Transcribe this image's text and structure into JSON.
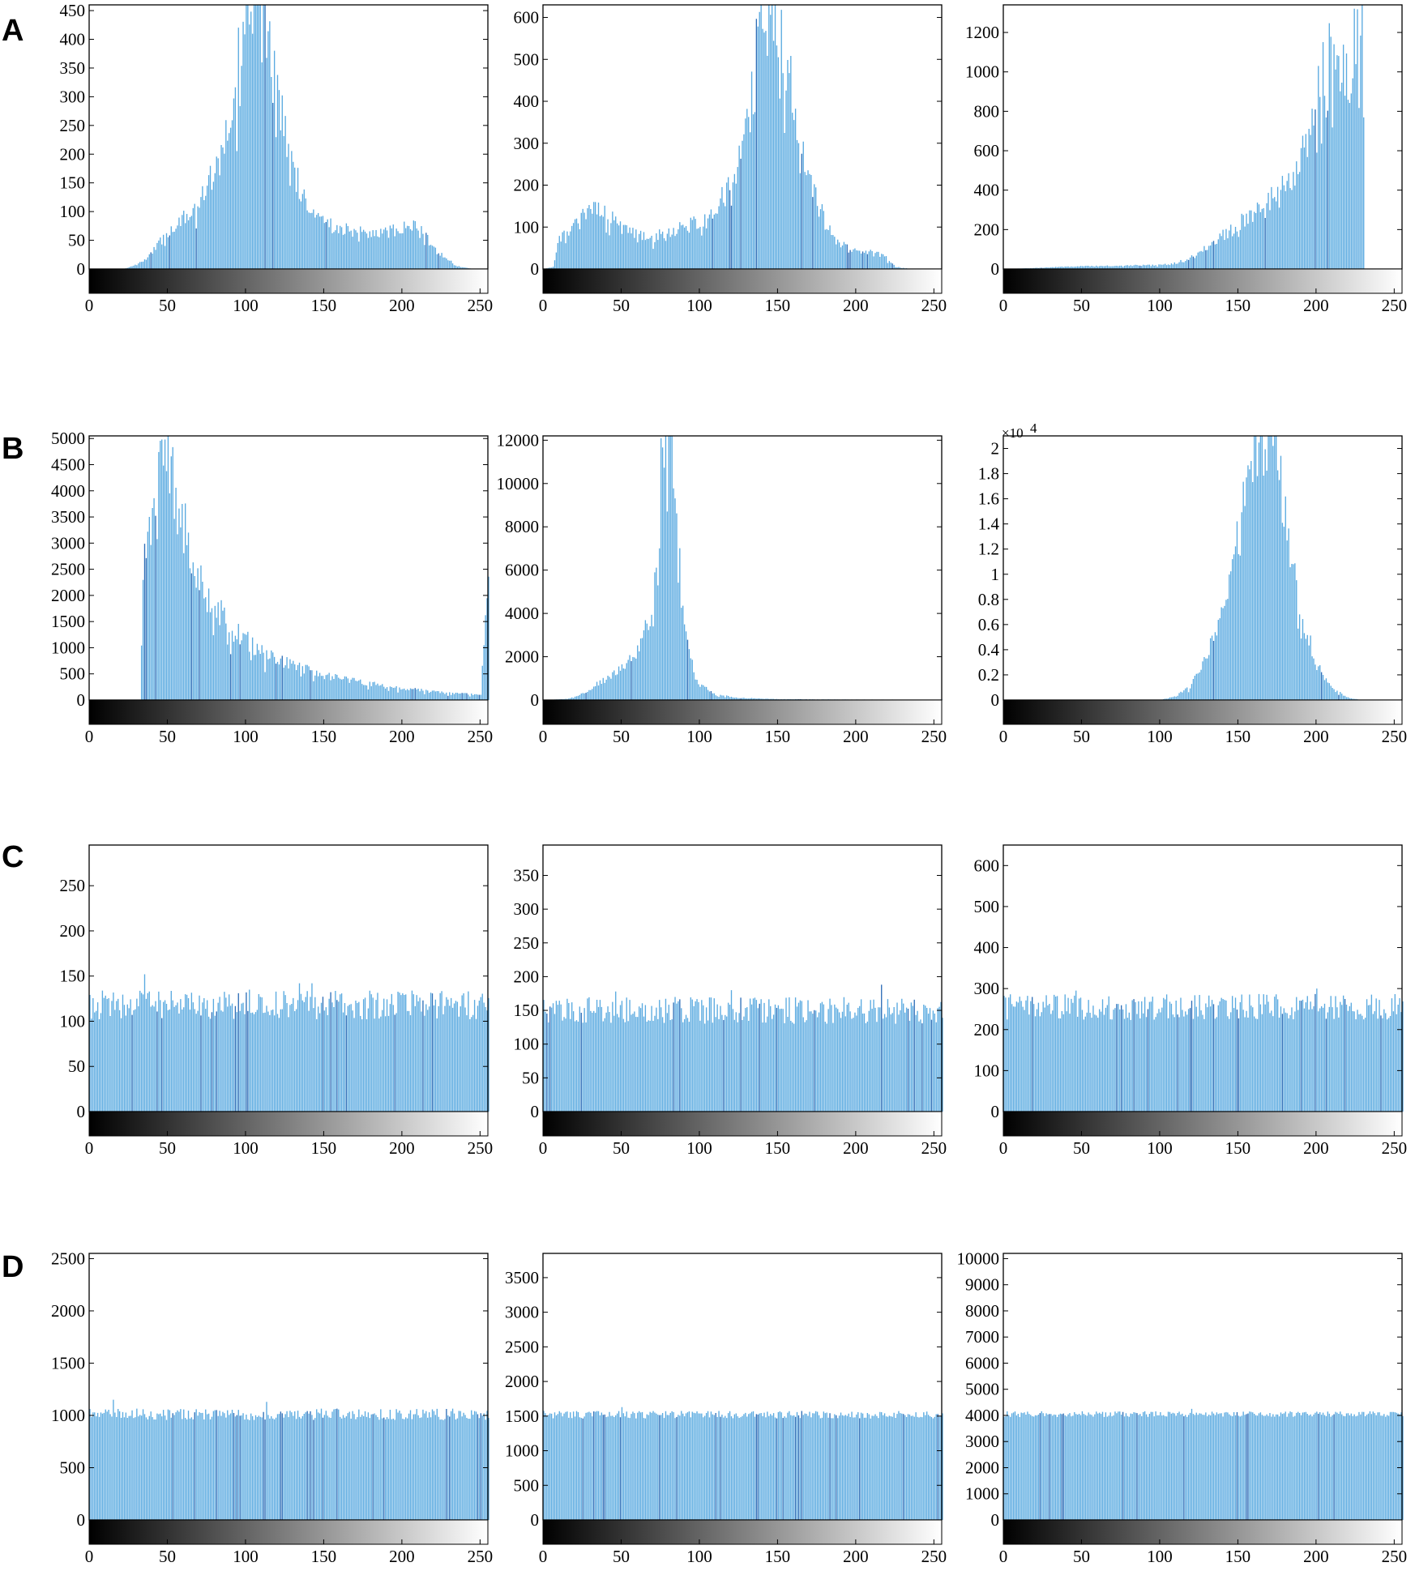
{
  "figure": {
    "bar_color": "#5aaae0",
    "bar_accent_color": "#2f6fb8",
    "row_labels": [
      "A",
      "B",
      "C",
      "D"
    ]
  },
  "chart_data": [
    {
      "id": "A1",
      "row": "A",
      "col": 0,
      "type": "bar",
      "x_range": [
        0,
        255
      ],
      "ylim": [
        0,
        460
      ],
      "yticks": [
        0,
        50,
        100,
        150,
        200,
        250,
        300,
        350,
        400,
        450
      ],
      "xticks": [
        0,
        50,
        100,
        150,
        200,
        250
      ],
      "profile": [
        [
          0,
          0
        ],
        [
          22,
          0
        ],
        [
          30,
          8
        ],
        [
          40,
          30
        ],
        [
          50,
          65
        ],
        [
          60,
          90
        ],
        [
          70,
          120
        ],
        [
          80,
          170
        ],
        [
          90,
          260
        ],
        [
          96,
          380
        ],
        [
          100,
          470
        ],
        [
          108,
          470
        ],
        [
          112,
          420
        ],
        [
          118,
          330
        ],
        [
          125,
          230
        ],
        [
          132,
          160
        ],
        [
          140,
          110
        ],
        [
          150,
          80
        ],
        [
          160,
          70
        ],
        [
          170,
          65
        ],
        [
          180,
          62
        ],
        [
          190,
          65
        ],
        [
          200,
          70
        ],
        [
          210,
          75
        ],
        [
          215,
          55
        ],
        [
          225,
          25
        ],
        [
          235,
          5
        ],
        [
          245,
          0
        ],
        [
          255,
          0
        ]
      ]
    },
    {
      "id": "A2",
      "row": "A",
      "col": 1,
      "type": "bar",
      "x_range": [
        0,
        255
      ],
      "ylim": [
        0,
        630
      ],
      "yticks": [
        0,
        100,
        200,
        300,
        400,
        500,
        600
      ],
      "xticks": [
        0,
        50,
        100,
        150,
        200,
        250
      ],
      "profile": [
        [
          0,
          0
        ],
        [
          6,
          5
        ],
        [
          10,
          70
        ],
        [
          16,
          90
        ],
        [
          22,
          110
        ],
        [
          28,
          140
        ],
        [
          35,
          150
        ],
        [
          42,
          130
        ],
        [
          50,
          95
        ],
        [
          60,
          80
        ],
        [
          70,
          75
        ],
        [
          80,
          90
        ],
        [
          90,
          100
        ],
        [
          100,
          115
        ],
        [
          110,
          150
        ],
        [
          120,
          200
        ],
        [
          128,
          290
        ],
        [
          134,
          430
        ],
        [
          139,
          640
        ],
        [
          148,
          640
        ],
        [
          153,
          560
        ],
        [
          160,
          400
        ],
        [
          168,
          260
        ],
        [
          176,
          150
        ],
        [
          184,
          80
        ],
        [
          190,
          60
        ],
        [
          196,
          45
        ],
        [
          204,
          40
        ],
        [
          212,
          40
        ],
        [
          218,
          30
        ],
        [
          225,
          5
        ],
        [
          235,
          0
        ],
        [
          255,
          0
        ]
      ]
    },
    {
      "id": "A3",
      "row": "A",
      "col": 2,
      "type": "bar",
      "x_range": [
        0,
        255
      ],
      "ylim": [
        0,
        1340
      ],
      "yticks": [
        0,
        200,
        400,
        600,
        800,
        1000,
        1200
      ],
      "xticks": [
        0,
        50,
        100,
        150,
        200,
        250
      ],
      "profile": [
        [
          0,
          0
        ],
        [
          20,
          5
        ],
        [
          40,
          12
        ],
        [
          60,
          15
        ],
        [
          80,
          18
        ],
        [
          100,
          20
        ],
        [
          110,
          30
        ],
        [
          120,
          60
        ],
        [
          130,
          110
        ],
        [
          140,
          170
        ],
        [
          150,
          230
        ],
        [
          160,
          300
        ],
        [
          170,
          350
        ],
        [
          180,
          420
        ],
        [
          190,
          560
        ],
        [
          198,
          800
        ],
        [
          204,
          1040
        ],
        [
          210,
          1080
        ],
        [
          216,
          1000
        ],
        [
          222,
          950
        ],
        [
          226,
          1350
        ],
        [
          229,
          1350
        ],
        [
          231,
          0
        ],
        [
          255,
          0
        ]
      ]
    },
    {
      "id": "B1",
      "row": "B",
      "col": 0,
      "type": "bar",
      "x_range": [
        0,
        255
      ],
      "ylim": [
        0,
        5050
      ],
      "yticks": [
        0,
        500,
        1000,
        1500,
        2000,
        2500,
        3000,
        3500,
        4000,
        4500,
        5000
      ],
      "xticks": [
        0,
        50,
        100,
        150,
        200,
        250
      ],
      "profile": [
        [
          0,
          0
        ],
        [
          32,
          0
        ],
        [
          34,
          2400
        ],
        [
          40,
          3800
        ],
        [
          47,
          4700
        ],
        [
          55,
          4000
        ],
        [
          65,
          2800
        ],
        [
          75,
          2000
        ],
        [
          90,
          1400
        ],
        [
          110,
          900
        ],
        [
          130,
          650
        ],
        [
          150,
          480
        ],
        [
          170,
          360
        ],
        [
          190,
          260
        ],
        [
          210,
          190
        ],
        [
          230,
          130
        ],
        [
          250,
          100
        ],
        [
          255,
          2800
        ]
      ]
    },
    {
      "id": "B2",
      "row": "B",
      "col": 1,
      "type": "bar",
      "x_range": [
        0,
        255
      ],
      "ylim": [
        0,
        12200
      ],
      "yticks": [
        0,
        2000,
        4000,
        6000,
        8000,
        10000,
        12000
      ],
      "xticks": [
        0,
        50,
        100,
        150,
        200,
        250
      ],
      "profile": [
        [
          0,
          0
        ],
        [
          15,
          50
        ],
        [
          25,
          300
        ],
        [
          35,
          800
        ],
        [
          45,
          1200
        ],
        [
          55,
          1800
        ],
        [
          62,
          2600
        ],
        [
          68,
          3800
        ],
        [
          73,
          6000
        ],
        [
          76,
          12500
        ],
        [
          82,
          12500
        ],
        [
          85,
          8000
        ],
        [
          90,
          3200
        ],
        [
          95,
          1600
        ],
        [
          100,
          700
        ],
        [
          110,
          250
        ],
        [
          125,
          100
        ],
        [
          150,
          40
        ],
        [
          200,
          20
        ],
        [
          255,
          15
        ]
      ]
    },
    {
      "id": "B3",
      "row": "B",
      "col": 2,
      "type": "bar",
      "x_range": [
        0,
        255
      ],
      "ylim": [
        0,
        2.1
      ],
      "ylim_units": "x10^4",
      "yticks": [
        0,
        0.2,
        0.4,
        0.6,
        0.8,
        1,
        1.2,
        1.4,
        1.6,
        1.8,
        2
      ],
      "ytick_labels": [
        "0",
        "0.2",
        "0.4",
        "0.6",
        "0.8",
        "1",
        "1.2",
        "1.4",
        "1.6",
        "1.8",
        "2"
      ],
      "y_multiplier_base": "×10",
      "y_multiplier_exp": "4",
      "xticks": [
        0,
        50,
        100,
        150,
        200,
        250
      ],
      "profile": [
        [
          0,
          0
        ],
        [
          100,
          0
        ],
        [
          110,
          0.03
        ],
        [
          120,
          0.12
        ],
        [
          130,
          0.35
        ],
        [
          140,
          0.75
        ],
        [
          150,
          1.3
        ],
        [
          155,
          1.7
        ],
        [
          160,
          2.15
        ],
        [
          172,
          2.15
        ],
        [
          178,
          1.7
        ],
        [
          185,
          1.1
        ],
        [
          192,
          0.6
        ],
        [
          200,
          0.28
        ],
        [
          210,
          0.09
        ],
        [
          220,
          0.02
        ],
        [
          228,
          0
        ],
        [
          255,
          0
        ]
      ]
    },
    {
      "id": "C1",
      "row": "C",
      "col": 0,
      "type": "bar",
      "x_range": [
        0,
        255
      ],
      "ylim": [
        0,
        295
      ],
      "yticks": [
        0,
        50,
        100,
        150,
        200,
        250
      ],
      "xticks": [
        0,
        50,
        100,
        150,
        200,
        250
      ],
      "uniform_level": 118,
      "noise": 16,
      "peaks": [
        [
          35,
          152
        ],
        [
          102,
          135
        ],
        [
          134,
          142
        ],
        [
          142,
          142
        ]
      ]
    },
    {
      "id": "C2",
      "row": "C",
      "col": 1,
      "type": "bar",
      "x_range": [
        0,
        255
      ],
      "ylim": [
        0,
        395
      ],
      "yticks": [
        0,
        50,
        100,
        150,
        200,
        250,
        300,
        350
      ],
      "xticks": [
        0,
        50,
        100,
        150,
        200,
        250
      ],
      "uniform_level": 150,
      "noise": 20,
      "peaks": [
        [
          216,
          188
        ],
        [
          46,
          178
        ],
        [
          120,
          180
        ]
      ]
    },
    {
      "id": "C3",
      "row": "C",
      "col": 2,
      "type": "bar",
      "x_range": [
        0,
        255
      ],
      "ylim": [
        0,
        650
      ],
      "yticks": [
        0,
        100,
        200,
        300,
        400,
        500,
        600
      ],
      "xticks": [
        0,
        50,
        100,
        150,
        200,
        250
      ],
      "uniform_level": 255,
      "noise": 32,
      "peaks": [
        [
          200,
          300
        ],
        [
          46,
          295
        ]
      ]
    },
    {
      "id": "D1",
      "row": "D",
      "col": 0,
      "type": "bar",
      "x_range": [
        0,
        255
      ],
      "ylim": [
        0,
        2550
      ],
      "yticks": [
        0,
        500,
        1000,
        1500,
        2000,
        2500
      ],
      "xticks": [
        0,
        50,
        100,
        150,
        200,
        250
      ],
      "uniform_level": 1010,
      "noise": 55,
      "peaks": [
        [
          15,
          1150
        ],
        [
          113,
          1130
        ]
      ]
    },
    {
      "id": "D2",
      "row": "D",
      "col": 1,
      "type": "bar",
      "x_range": [
        0,
        255
      ],
      "ylim": [
        0,
        3850
      ],
      "yticks": [
        0,
        500,
        1000,
        1500,
        2000,
        2500,
        3000,
        3500
      ],
      "xticks": [
        0,
        50,
        100,
        150,
        200,
        250
      ],
      "uniform_level": 1520,
      "noise": 55,
      "peaks": [
        [
          50,
          1630
        ]
      ]
    },
    {
      "id": "D3",
      "row": "D",
      "col": 2,
      "type": "bar",
      "x_range": [
        0,
        255
      ],
      "ylim": [
        0,
        10200
      ],
      "yticks": [
        0,
        1000,
        2000,
        3000,
        4000,
        5000,
        6000,
        7000,
        8000,
        9000,
        10000
      ],
      "xticks": [
        0,
        50,
        100,
        150,
        200,
        250
      ],
      "uniform_level": 4050,
      "noise": 110,
      "peaks": [
        [
          120,
          4250
        ]
      ]
    }
  ]
}
